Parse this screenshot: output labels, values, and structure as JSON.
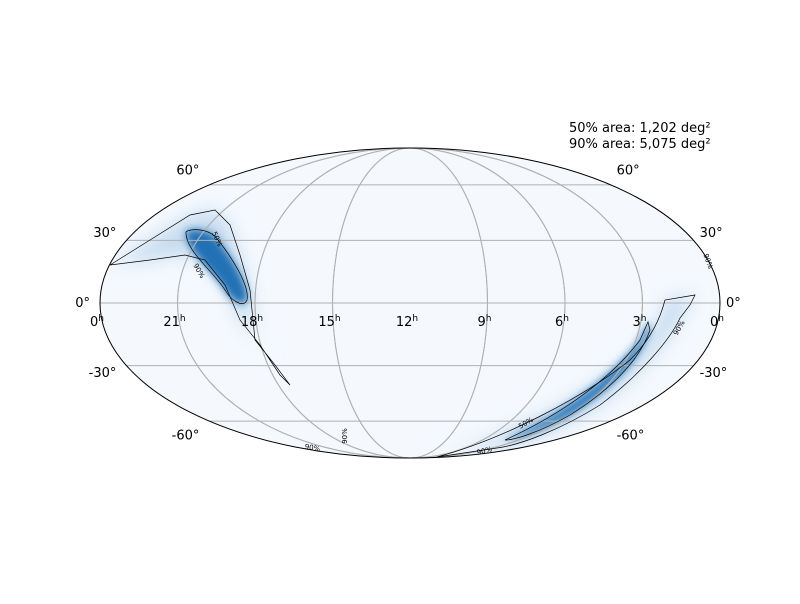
{
  "annotations": [
    "50% area: 1,202 deg²",
    "90% area: 5,075 deg²"
  ],
  "grid": {
    "latitudes": [
      {
        "value": 60,
        "label": "60°"
      },
      {
        "value": 30,
        "label": "30°"
      },
      {
        "value": 0,
        "label": "0°"
      },
      {
        "value": -30,
        "label": "-30°"
      },
      {
        "value": -60,
        "label": "-60°"
      }
    ],
    "right_ascension": [
      {
        "value": 24,
        "label": "0",
        "unit": "h"
      },
      {
        "value": 21,
        "label": "21",
        "unit": "h"
      },
      {
        "value": 18,
        "label": "18",
        "unit": "h"
      },
      {
        "value": 15,
        "label": "15",
        "unit": "h"
      },
      {
        "value": 12,
        "label": "12",
        "unit": "h"
      },
      {
        "value": 9,
        "label": "9",
        "unit": "h"
      },
      {
        "value": 6,
        "label": "6",
        "unit": "h"
      },
      {
        "value": 3,
        "label": "3",
        "unit": "h"
      },
      {
        "value": 0,
        "label": "0",
        "unit": "h"
      }
    ]
  },
  "contour_labels": [
    "50%",
    "90%",
    "50%",
    "90%",
    "90%",
    "90%",
    "90%",
    "90%"
  ]
}
